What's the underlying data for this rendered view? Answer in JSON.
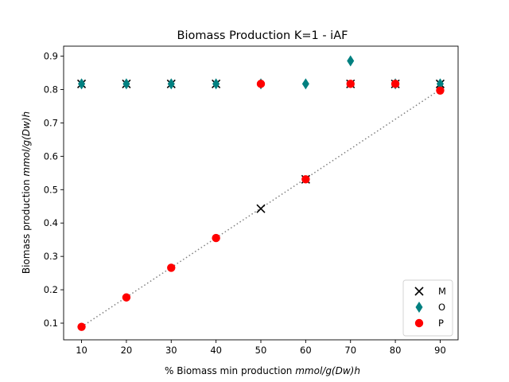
{
  "chart_data": {
    "type": "scatter",
    "title": "Biomass Production K=1 - iAF",
    "xlabel": {
      "prefix": "% Biomass min production ",
      "unit": "mmol/g(Dw)h"
    },
    "ylabel": {
      "prefix": "Biomass  production ",
      "unit": "mmol/g(Dw)h"
    },
    "xlim": [
      6,
      94
    ],
    "ylim": [
      0.05,
      0.93
    ],
    "xticks": [
      10,
      20,
      30,
      40,
      50,
      60,
      70,
      80,
      90
    ],
    "yticks": [
      0.1,
      0.2,
      0.3,
      0.4,
      0.5,
      0.6,
      0.7,
      0.8,
      0.9
    ],
    "grid": false,
    "legend_position": "lower-right",
    "reference_line": {
      "style": "dotted",
      "color": "#808080",
      "x": [
        10,
        90
      ],
      "y": [
        0.0889,
        0.8
      ]
    },
    "series": [
      {
        "name": "M",
        "marker": "x",
        "color": "#000000",
        "x": [
          10,
          20,
          30,
          40,
          50,
          60,
          70,
          80,
          90
        ],
        "y": [
          0.817,
          0.817,
          0.817,
          0.817,
          0.443,
          0.531,
          0.817,
          0.817,
          0.817
        ]
      },
      {
        "name": "O",
        "marker": "diamond",
        "color": "#008080",
        "x": [
          10,
          20,
          30,
          40,
          50,
          60,
          70,
          80,
          90
        ],
        "y": [
          0.817,
          0.817,
          0.817,
          0.817,
          0.817,
          0.817,
          0.886,
          0.817,
          0.817
        ]
      },
      {
        "name": "P",
        "marker": "circle",
        "color": "#ff0000",
        "x": [
          10,
          20,
          30,
          40,
          50,
          60,
          70,
          80,
          90
        ],
        "y": [
          0.089,
          0.177,
          0.266,
          0.355,
          0.817,
          0.531,
          0.817,
          0.817,
          0.797
        ]
      }
    ]
  }
}
